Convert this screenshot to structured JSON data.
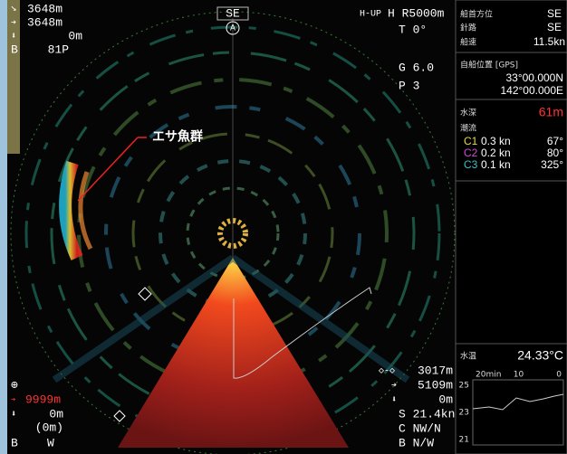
{
  "left_top": {
    "range1": "3648m",
    "range2": "3648m",
    "depth": "0m",
    "b_label": "B",
    "b_value": "81P"
  },
  "heading_mark": "SE",
  "a_mark": "A",
  "mode": {
    "mode": "H-UP",
    "range": "H R5000m",
    "tilt": "T  0°",
    "gain": "G 6.0",
    "p": "P  3"
  },
  "panel": {
    "heading": {
      "label": "船首方位",
      "value": "SE"
    },
    "course": {
      "label": "針路",
      "value": "SE"
    },
    "speed": {
      "label": "船速",
      "value": "11.5kn"
    },
    "position": {
      "label": "自船位置 [GPS]",
      "lat": "33°00.000N",
      "lon": "142°00.000E"
    },
    "depth": {
      "label": "水深",
      "value": "61m"
    },
    "current": {
      "label": "潮流",
      "rows": [
        {
          "name": "C1",
          "speed": "0.3 kn",
          "dir": "67°"
        },
        {
          "name": "C2",
          "speed": "0.2 kn",
          "dir": "80°"
        },
        {
          "name": "C3",
          "speed": "0.1 kn",
          "dir": "325°"
        }
      ]
    },
    "water_temp": {
      "label": "水温",
      "value": "24.33°C",
      "x_labels": [
        "20min",
        "10",
        "0"
      ],
      "y_labels": [
        "25",
        "23",
        "21"
      ]
    }
  },
  "annotation": "エサ魚群",
  "left_bottom": {
    "range": "9999m",
    "depth": "0m",
    "depth2": "(0m)",
    "b": "B",
    "w": "W"
  },
  "right_bottom": {
    "range": "3017m",
    "dist": "5109m",
    "depth": "0m",
    "speed": "S 21.4kn",
    "course": "C NW/N",
    "bearing": "B N/W"
  }
}
